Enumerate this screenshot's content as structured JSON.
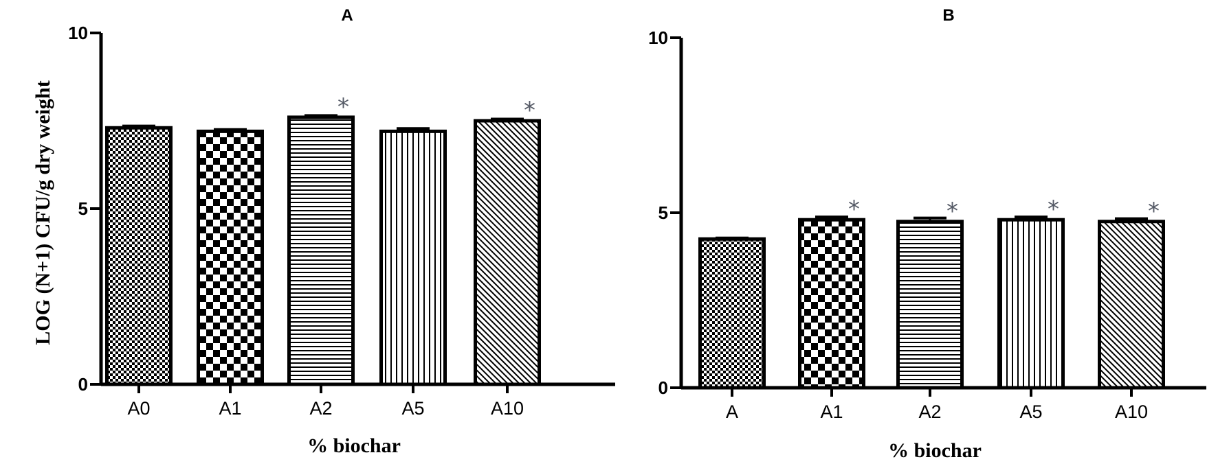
{
  "chart_data": [
    {
      "type": "bar",
      "title": "A",
      "categories": [
        "A0",
        "A1",
        "A2",
        "A5",
        "A10"
      ],
      "values": [
        7.3,
        7.2,
        7.6,
        7.2,
        7.5
      ],
      "errors": [
        0.05,
        0.05,
        0.05,
        0.08,
        0.05
      ],
      "significance": [
        "",
        "",
        "*",
        "",
        "*"
      ],
      "patterns": [
        "fine-check",
        "checker",
        "horizontal",
        "vertical",
        "diagonal"
      ],
      "xlabel": "% biochar",
      "ylabel": "LOG (N+1) CFU/g dry weight",
      "ylim": [
        0,
        10
      ],
      "yticks": [
        "0",
        "5",
        "10"
      ],
      "grid": false
    },
    {
      "type": "bar",
      "title": "B",
      "categories": [
        "A",
        "A1",
        "A2",
        "A5",
        "A10"
      ],
      "values": [
        4.25,
        4.8,
        4.75,
        4.8,
        4.75
      ],
      "errors": [
        0.03,
        0.08,
        0.1,
        0.08,
        0.08
      ],
      "significance": [
        "",
        "*",
        "*",
        "*",
        "*"
      ],
      "patterns": [
        "fine-check",
        "checker",
        "horizontal",
        "vertical",
        "diagonal"
      ],
      "xlabel": "% biochar",
      "ylabel": "",
      "ylim": [
        0,
        10
      ],
      "yticks": [
        "0",
        "5",
        "10"
      ],
      "grid": false
    }
  ]
}
